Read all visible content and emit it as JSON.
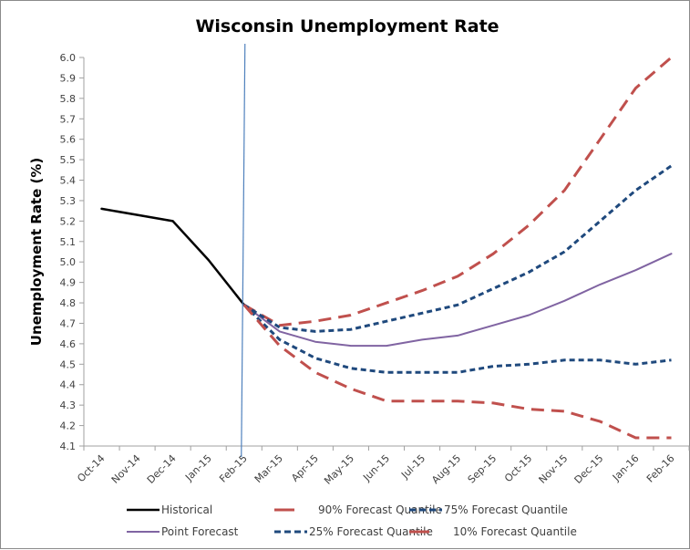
{
  "chart_data": {
    "type": "line",
    "title": "Wisconsin Unemployment Rate",
    "xlabel": "",
    "ylabel": "Unemployment Rate (%)",
    "ylim": [
      4.1,
      6.0
    ],
    "ytick_step": 0.1,
    "grid": false,
    "categories": [
      "Oct-14",
      "Nov-14",
      "Dec-14",
      "Jan-15",
      "Feb-15",
      "Mar-15",
      "Apr-15",
      "May-15",
      "Jun-15",
      "Jul-15",
      "Aug-15",
      "Sep-15",
      "Oct-15",
      "Nov-15",
      "Dec-15",
      "Jan-16",
      "Feb-16"
    ],
    "forecast_start_marker": "Feb-15",
    "series": [
      {
        "key": "historical",
        "name": "Historical",
        "color": "#000000",
        "style": "solid",
        "values": [
          5.26,
          5.23,
          5.2,
          5.01,
          4.79,
          null,
          null,
          null,
          null,
          null,
          null,
          null,
          null,
          null,
          null,
          null,
          null
        ]
      },
      {
        "key": "point",
        "name": "Point Forecast",
        "color": "#8064A2",
        "style": "solid",
        "values": [
          null,
          null,
          null,
          null,
          4.79,
          4.66,
          4.61,
          4.59,
          4.59,
          4.62,
          4.64,
          4.69,
          4.74,
          4.81,
          4.89,
          4.96,
          5.04
        ]
      },
      {
        "key": "q90",
        "name": "90% Forecast Quantile",
        "color": "#C0504D",
        "style": "long-dash",
        "values": [
          null,
          null,
          null,
          null,
          4.79,
          4.69,
          4.71,
          4.74,
          4.8,
          4.86,
          4.93,
          5.04,
          5.18,
          5.35,
          5.6,
          5.85,
          6.0
        ]
      },
      {
        "key": "q75",
        "name": "75% Forecast Quantile",
        "color": "#1F497D",
        "style": "short-dash",
        "values": [
          null,
          null,
          null,
          null,
          4.79,
          4.68,
          4.66,
          4.67,
          4.71,
          4.75,
          4.79,
          4.87,
          4.95,
          5.05,
          5.2,
          5.35,
          5.47
        ]
      },
      {
        "key": "q25",
        "name": "25% Forecast Quantile",
        "color": "#1F497D",
        "style": "short-dash",
        "values": [
          null,
          null,
          null,
          null,
          4.79,
          4.62,
          4.53,
          4.48,
          4.46,
          4.46,
          4.46,
          4.49,
          4.5,
          4.52,
          4.52,
          4.5,
          4.52
        ]
      },
      {
        "key": "q10",
        "name": "10% Forecast Quantile",
        "color": "#C0504D",
        "style": "long-dash",
        "values": [
          null,
          null,
          null,
          null,
          4.79,
          4.59,
          4.46,
          4.38,
          4.32,
          4.32,
          4.32,
          4.31,
          4.28,
          4.27,
          4.22,
          4.14,
          4.14
        ]
      }
    ],
    "legend": {
      "placement": "bottom",
      "rows": [
        [
          "historical",
          "q90",
          "q75"
        ],
        [
          "point",
          "q25",
          "q10"
        ]
      ]
    },
    "marker_line_color": "#4F81BD"
  }
}
